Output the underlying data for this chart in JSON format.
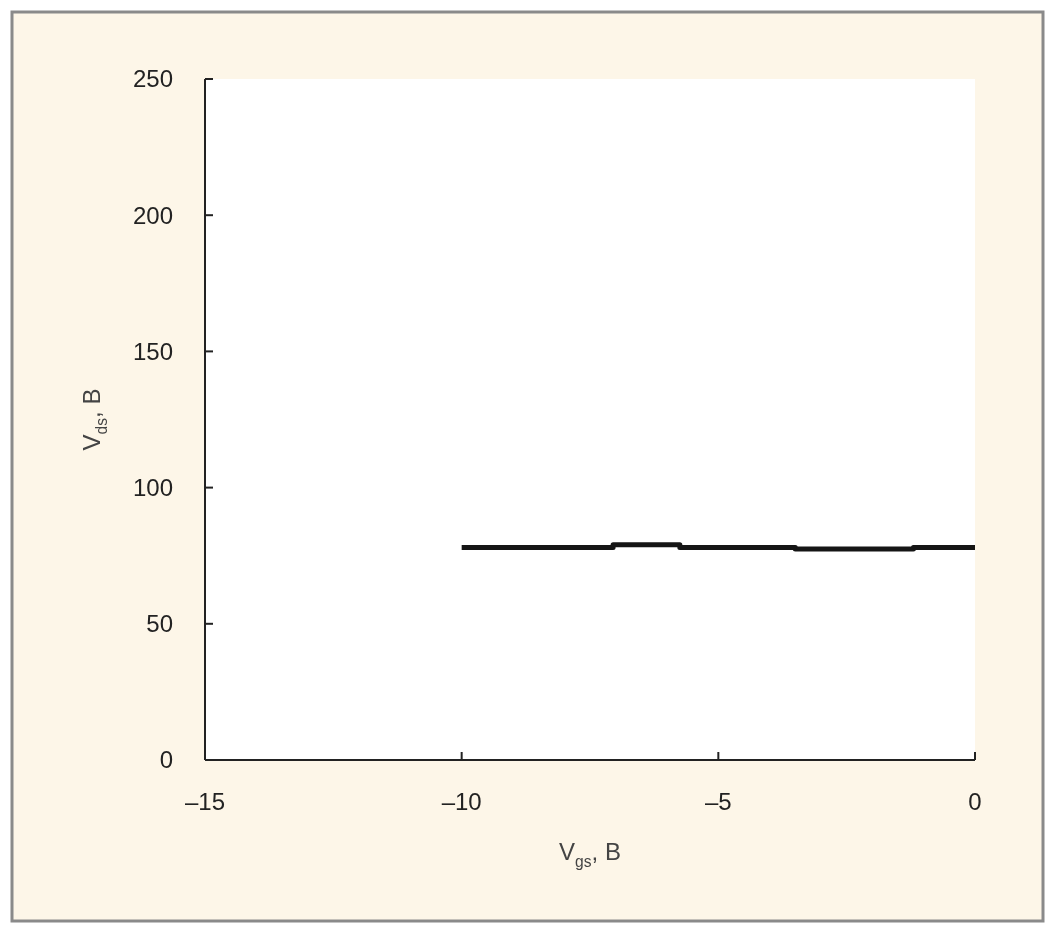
{
  "chart_data": {
    "type": "step",
    "xlabel": "V$_{gs}$, B",
    "ylabel": "V$_{ds}$, B",
    "x": [
      -10,
      -7.05,
      -5.75,
      -3.5,
      -1.2,
      0
    ],
    "series": [
      {
        "color": "#151515",
        "values": [
          78,
          79,
          78,
          77.5,
          78,
          78
        ]
      }
    ],
    "xlim": [
      -15,
      0
    ],
    "xticks": [
      {
        "value": -15,
        "label": "–15"
      },
      {
        "value": -10,
        "label": "–10"
      },
      {
        "value": -5,
        "label": "–5"
      },
      0
    ],
    "ylim": [
      0,
      250
    ],
    "yticks": [
      0,
      50,
      100,
      150,
      200,
      250
    ],
    "grid": false,
    "marker": "none",
    "line_style": "solid"
  }
}
